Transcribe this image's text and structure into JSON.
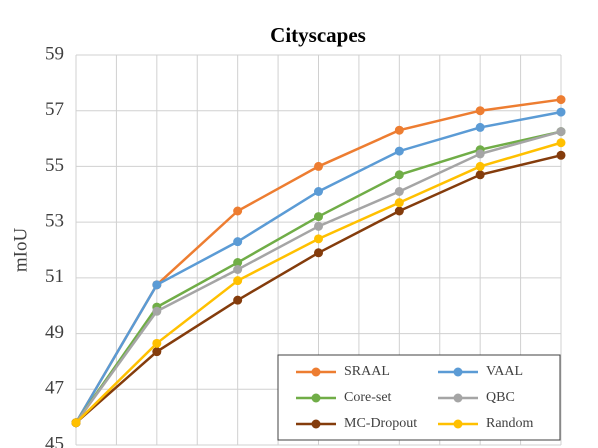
{
  "chart_data": {
    "type": "line",
    "title": "Cityscapes",
    "y_label": "mIoU",
    "categories": [
      null,
      null,
      null,
      null,
      null,
      null,
      null
    ],
    "series": [
      {
        "name": "SRAAL",
        "color": "#ed7d31",
        "values": [
          45.8,
          50.75,
          53.4,
          55.0,
          56.3,
          57.0,
          57.4
        ]
      },
      {
        "name": "VAAL",
        "color": "#5b9bd5",
        "values": [
          45.8,
          50.75,
          52.3,
          54.1,
          55.55,
          56.4,
          56.95
        ]
      },
      {
        "name": "Core-set",
        "color": "#70ad47",
        "values": [
          45.8,
          49.95,
          51.55,
          53.2,
          54.7,
          55.6,
          56.25
        ]
      },
      {
        "name": "QBC",
        "color": "#a5a5a5",
        "values": [
          45.8,
          49.8,
          51.3,
          52.85,
          54.1,
          55.45,
          56.25
        ]
      },
      {
        "name": "MC-Dropout",
        "color": "#843c0c",
        "values": [
          45.8,
          48.35,
          50.2,
          51.9,
          53.4,
          54.7,
          55.4
        ]
      },
      {
        "name": "Random",
        "color": "#ffc000",
        "values": [
          45.8,
          48.65,
          50.9,
          52.4,
          53.7,
          55.0,
          55.85
        ]
      }
    ],
    "ylim": [
      45,
      59
    ],
    "yticks": [
      45,
      47,
      49,
      51,
      53,
      55,
      57,
      59
    ],
    "grid": true,
    "legend": "lower right"
  }
}
